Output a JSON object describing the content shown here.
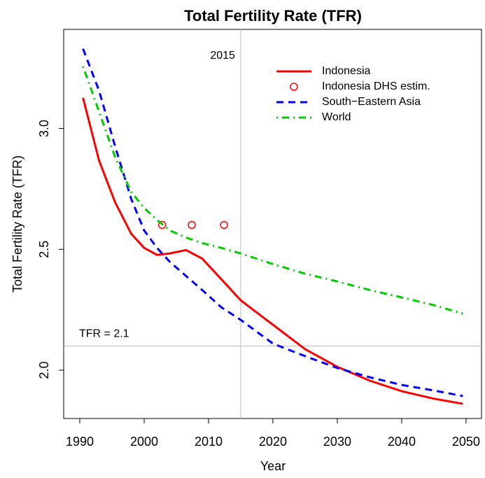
{
  "chart_data": {
    "type": "line",
    "title": "Total Fertility Rate (TFR)",
    "x_label": "Year",
    "y_label": "Total Fertility Rate (TFR)",
    "x": [
      1990.5,
      1993,
      1995.5,
      1998,
      2000,
      2002,
      2004,
      2006.5,
      2009,
      2012,
      2015,
      2020,
      2025,
      2030,
      2035,
      2040,
      2045,
      2049.5
    ],
    "series": [
      {
        "name": "Indonesia",
        "color": "#ff0000",
        "linestyle": "solid",
        "values": [
          3.127,
          2.867,
          2.694,
          2.564,
          2.506,
          2.477,
          2.483,
          2.497,
          2.462,
          2.376,
          2.289,
          2.188,
          2.087,
          2.014,
          1.957,
          1.913,
          1.882,
          1.861
        ]
      },
      {
        "name": "Indonesia DHS estim.",
        "color": "#ff0000",
        "linestyle": "none",
        "marker": "circle",
        "x": [
          2002.8,
          2007.4,
          2012.4
        ],
        "values": [
          2.601,
          2.601,
          2.601
        ]
      },
      {
        "name": "South−Eastern Asia",
        "color": "#0000ff",
        "linestyle": "dashed",
        "values": [
          3.33,
          3.156,
          2.925,
          2.708,
          2.578,
          2.506,
          2.448,
          2.39,
          2.332,
          2.26,
          2.208,
          2.11,
          2.058,
          2.009,
          1.971,
          1.939,
          1.916,
          1.893
        ]
      },
      {
        "name": "World",
        "color": "#00cc00",
        "linestyle": "dotdash",
        "values": [
          3.257,
          3.069,
          2.881,
          2.737,
          2.671,
          2.621,
          2.578,
          2.549,
          2.526,
          2.506,
          2.483,
          2.439,
          2.399,
          2.367,
          2.332,
          2.301,
          2.269,
          2.234
        ]
      }
    ],
    "xlim": [
      1987.5,
      2052.4
    ],
    "ylim": [
      1.8,
      3.41
    ],
    "xticks": [
      1990,
      2000,
      2010,
      2020,
      2030,
      2040,
      2050
    ],
    "yticks": [
      {
        "value": 2,
        "label": "2.0"
      },
      2.5,
      {
        "value": 3,
        "label": "3.0"
      }
    ],
    "reference_lines": [
      {
        "axis": "x",
        "value": 2015,
        "label": "2015"
      },
      {
        "axis": "y",
        "value": 2.1,
        "label": "TFR = 2.1"
      }
    ],
    "legend": "top-right",
    "grid": false
  }
}
